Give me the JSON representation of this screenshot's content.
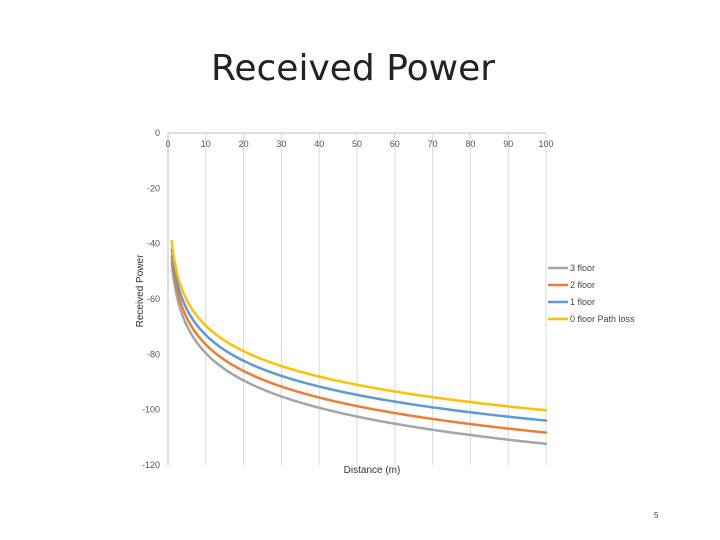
{
  "slide": {
    "title": "Received Power",
    "page_number": "5"
  },
  "chart_data": {
    "type": "line",
    "title": "",
    "xlabel": "Distance (m)",
    "ylabel": "Received Power",
    "xlim": [
      0,
      100
    ],
    "ylim": [
      -120,
      0
    ],
    "x_ticks": [
      0,
      10,
      20,
      30,
      40,
      50,
      60,
      70,
      80,
      90,
      100
    ],
    "y_ticks": [
      0,
      -20,
      -40,
      -60,
      -80,
      -100,
      -120
    ],
    "grid": "vertical",
    "legend_position": "right",
    "series": [
      {
        "name": "3 floor",
        "color": "#a5a5a5",
        "x": [
          1,
          2,
          3,
          5,
          10,
          20,
          30,
          50,
          70,
          100
        ],
        "y": [
          -44,
          -57,
          -63,
          -71,
          -81,
          -91,
          -96,
          -102,
          -106,
          -111
        ]
      },
      {
        "name": "2 floor",
        "color": "#ed7d31",
        "x": [
          1,
          2,
          3,
          5,
          10,
          20,
          30,
          50,
          70,
          100
        ],
        "y": [
          -43,
          -55,
          -60,
          -67,
          -77,
          -87,
          -92,
          -99,
          -103,
          -107
        ]
      },
      {
        "name": "1 floor",
        "color": "#5b9bd5",
        "x": [
          1,
          2,
          3,
          5,
          10,
          20,
          30,
          50,
          70,
          100
        ],
        "y": [
          -41,
          -52,
          -57,
          -64,
          -73,
          -83,
          -88,
          -95,
          -99,
          -103
        ]
      },
      {
        "name": "0 floor Path loss",
        "color": "#ffc000",
        "x": [
          1,
          2,
          3,
          5,
          10,
          20,
          30,
          50,
          70,
          100
        ],
        "y": [
          -38,
          -48,
          -54,
          -61,
          -70,
          -80,
          -85,
          -91,
          -95,
          -99
        ]
      }
    ]
  }
}
